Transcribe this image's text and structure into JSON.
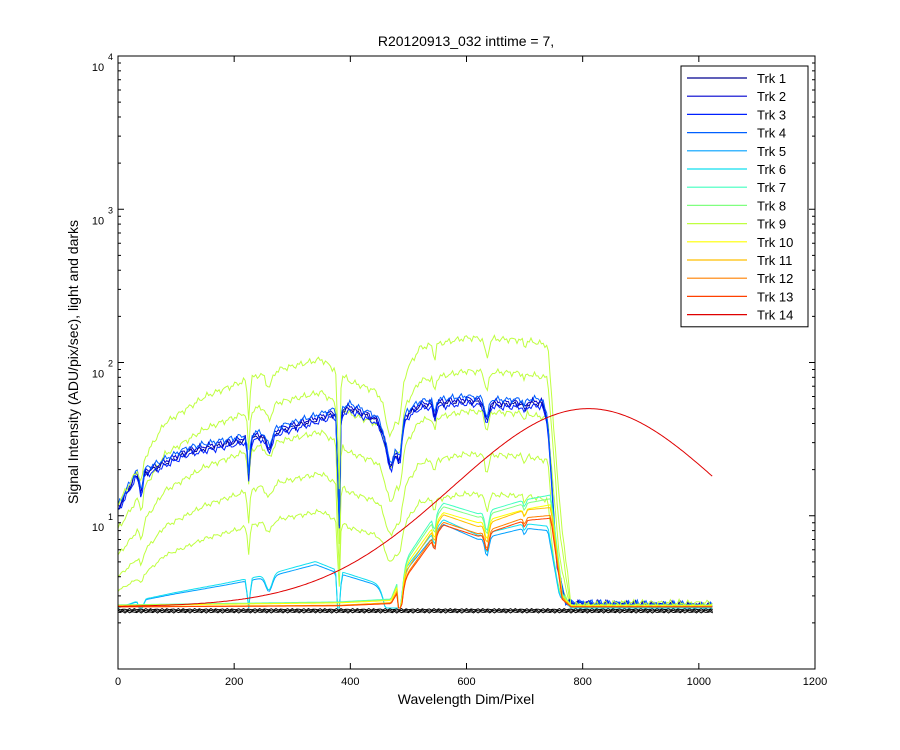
{
  "chart_data": {
    "type": "line",
    "title": "R20120913_032 inttime = 7,",
    "xlabel": "Wavelength Dim/Pixel",
    "ylabel": "Signal Intensity (ADU/pix/sec), light and darks",
    "xlim": [
      0,
      1200
    ],
    "ylim": [
      1,
      10000
    ],
    "yscale": "log",
    "x_ticks": [
      "0",
      "200",
      "400",
      "600",
      "800",
      "1000",
      "1200"
    ],
    "y_ticks": [
      {
        "base": "10",
        "exp": "1"
      },
      {
        "base": "10",
        "exp": "2"
      },
      {
        "base": "10",
        "exp": "3"
      },
      {
        "base": "10",
        "exp": "4"
      }
    ],
    "legend_position": "top-right",
    "grid": false,
    "series": [
      {
        "name": "Trk 1",
        "color": "#00008f",
        "profile": "blue",
        "scale": 1.0
      },
      {
        "name": "Trk 2",
        "color": "#0000cf",
        "profile": "blue",
        "scale": 1.04
      },
      {
        "name": "Trk 3",
        "color": "#0020ff",
        "profile": "blue",
        "scale": 0.96
      },
      {
        "name": "Trk 4",
        "color": "#0060ff",
        "profile": "blue",
        "scale": 1.08
      },
      {
        "name": "Trk 5",
        "color": "#00a0ff",
        "profile": "cyan",
        "scale": 1.0
      },
      {
        "name": "Trk 6",
        "color": "#10dfef",
        "profile": "cyan",
        "scale": 1.1
      },
      {
        "name": "Trk 7",
        "color": "#40ffbf",
        "profile": "green",
        "scale": 1.2
      },
      {
        "name": "Trk 8",
        "color": "#80ff80",
        "profile": "green",
        "scale": 1.12
      },
      {
        "name": "Trk 9",
        "color": "#bfff40",
        "profile": "yellow",
        "scale": 1.0
      },
      {
        "name": "Trk 10",
        "color": "#ffff00",
        "profile": "green",
        "scale": 1.0
      },
      {
        "name": "Trk 11",
        "color": "#ffbf00",
        "profile": "orange",
        "scale": 1.05
      },
      {
        "name": "Trk 12",
        "color": "#ff8000",
        "profile": "orange",
        "scale": 0.9
      },
      {
        "name": "Trk 13",
        "color": "#ff4000",
        "profile": "orange",
        "scale": 0.85
      },
      {
        "name": "Trk 14",
        "color": "#df0000",
        "profile": "red",
        "scale": 1.0
      }
    ]
  }
}
